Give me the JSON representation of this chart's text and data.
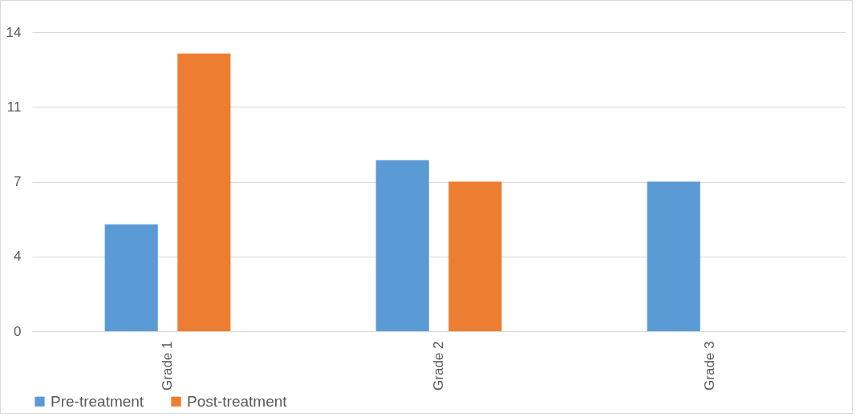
{
  "chart_data": {
    "type": "bar",
    "categories": [
      "Grade 1",
      "Grade 2",
      "Grade 3"
    ],
    "series": [
      {
        "name": "Pre-treatment",
        "color": "#5b9bd5",
        "values": [
          5,
          8,
          7
        ]
      },
      {
        "name": "Post-treatment",
        "color": "#ed7d31",
        "values": [
          13,
          7,
          0
        ]
      }
    ],
    "ylim": [
      0,
      14
    ],
    "yticks": [
      0,
      {
        "value": 3.5,
        "label": "4"
      },
      7,
      {
        "value": 10.5,
        "label": "11"
      },
      14
    ],
    "grid": "y",
    "legend": "bottom"
  }
}
